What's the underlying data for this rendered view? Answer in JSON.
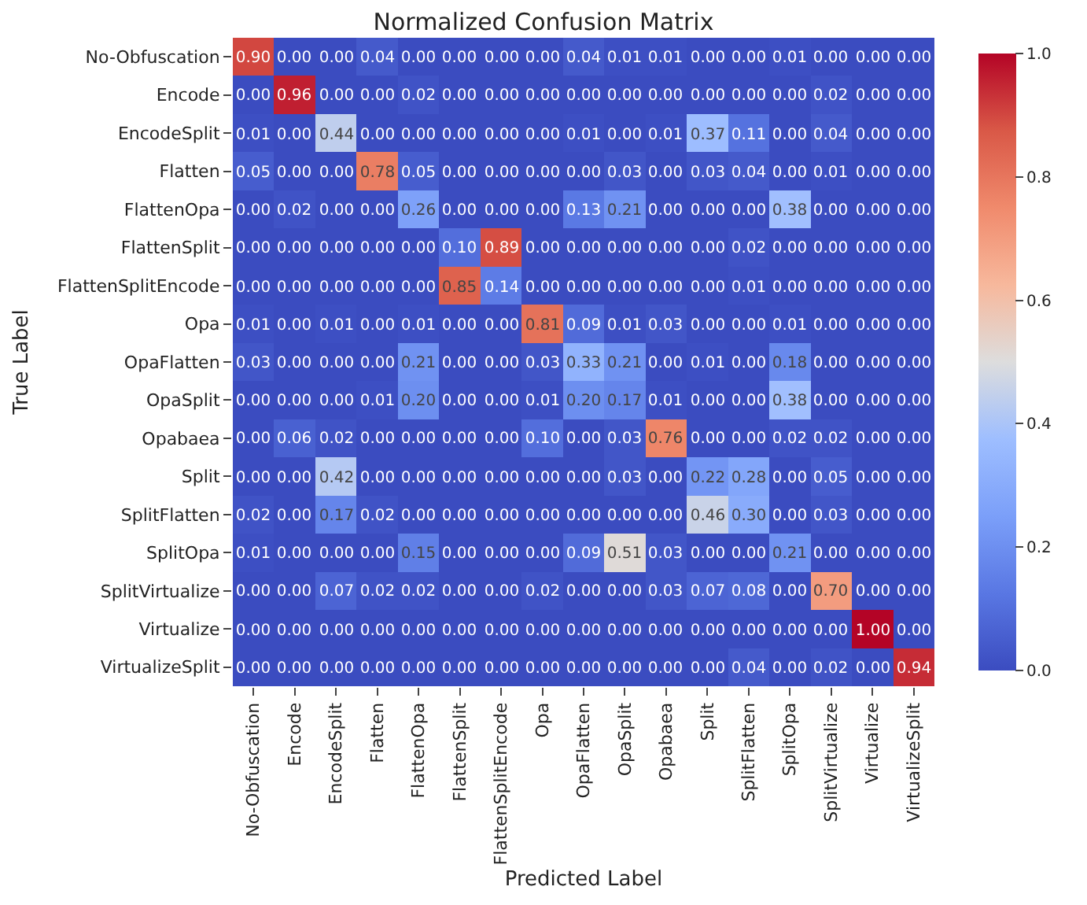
{
  "chart_data": {
    "type": "heatmap",
    "title": "Normalized Confusion Matrix",
    "xlabel": "Predicted Label",
    "ylabel": "True Label",
    "categories": [
      "No-Obfuscation",
      "Encode",
      "EncodeSplit",
      "Flatten",
      "FlattenOpa",
      "FlattenSplit",
      "FlattenSplitEncode",
      "Opa",
      "OpaFlatten",
      "OpaSplit",
      "Opabaea",
      "Split",
      "SplitFlatten",
      "SplitOpa",
      "SplitVirtualize",
      "Virtualize",
      "VirtualizeSplit"
    ],
    "y_categories": [
      "No-Obfuscation",
      "Encode",
      "EncodeSplit",
      "Flatten",
      "FlattenOpa",
      "FlattenSplit",
      "FlattenSplitEncode",
      "Opa",
      "OpaFlatten",
      "OpaSplit",
      "Opabaea",
      "Split",
      "SplitFlatten",
      "SplitOpa",
      "SplitVirtualize",
      "Virtualize",
      "VirtualizeSplit"
    ],
    "cells": [
      [
        0.9,
        0.0,
        0.0,
        0.04,
        0.0,
        0.0,
        0.0,
        0.0,
        0.04,
        0.01,
        0.01,
        0.0,
        0.0,
        0.01,
        0.0,
        0.0,
        0.0
      ],
      [
        0.0,
        0.96,
        0.0,
        0.0,
        0.02,
        0.0,
        0.0,
        0.0,
        0.0,
        0.0,
        0.0,
        0.0,
        0.0,
        0.0,
        0.02,
        0.0,
        0.0
      ],
      [
        0.01,
        0.0,
        0.44,
        0.0,
        0.0,
        0.0,
        0.0,
        0.0,
        0.01,
        0.0,
        0.01,
        0.37,
        0.11,
        0.0,
        0.04,
        0.0,
        0.0
      ],
      [
        0.05,
        0.0,
        0.0,
        0.78,
        0.05,
        0.0,
        0.0,
        0.0,
        0.0,
        0.03,
        0.0,
        0.03,
        0.04,
        0.0,
        0.01,
        0.0,
        0.0
      ],
      [
        0.0,
        0.02,
        0.0,
        0.0,
        0.26,
        0.0,
        0.0,
        0.0,
        0.13,
        0.21,
        0.0,
        0.0,
        0.0,
        0.38,
        0.0,
        0.0,
        0.0
      ],
      [
        0.0,
        0.0,
        0.0,
        0.0,
        0.0,
        0.1,
        0.89,
        0.0,
        0.0,
        0.0,
        0.0,
        0.0,
        0.02,
        0.0,
        0.0,
        0.0,
        0.0
      ],
      [
        0.0,
        0.0,
        0.0,
        0.0,
        0.0,
        0.85,
        0.14,
        0.0,
        0.0,
        0.0,
        0.0,
        0.0,
        0.01,
        0.0,
        0.0,
        0.0,
        0.0
      ],
      [
        0.01,
        0.0,
        0.01,
        0.0,
        0.01,
        0.0,
        0.0,
        0.81,
        0.09,
        0.01,
        0.03,
        0.0,
        0.0,
        0.01,
        0.0,
        0.0,
        0.0
      ],
      [
        0.03,
        0.0,
        0.0,
        0.0,
        0.21,
        0.0,
        0.0,
        0.03,
        0.33,
        0.21,
        0.0,
        0.01,
        0.0,
        0.18,
        0.0,
        0.0,
        0.0
      ],
      [
        0.0,
        0.0,
        0.0,
        0.01,
        0.2,
        0.0,
        0.0,
        0.01,
        0.2,
        0.17,
        0.01,
        0.0,
        0.0,
        0.38,
        0.0,
        0.0,
        0.0
      ],
      [
        0.0,
        0.06,
        0.02,
        0.0,
        0.0,
        0.0,
        0.0,
        0.1,
        0.0,
        0.03,
        0.76,
        0.0,
        0.0,
        0.02,
        0.02,
        0.0,
        0.0
      ],
      [
        0.0,
        0.0,
        0.42,
        0.0,
        0.0,
        0.0,
        0.0,
        0.0,
        0.0,
        0.03,
        0.0,
        0.22,
        0.28,
        0.0,
        0.05,
        0.0,
        0.0
      ],
      [
        0.02,
        0.0,
        0.17,
        0.02,
        0.0,
        0.0,
        0.0,
        0.0,
        0.0,
        0.0,
        0.0,
        0.46,
        0.3,
        0.0,
        0.03,
        0.0,
        0.0
      ],
      [
        0.01,
        0.0,
        0.0,
        0.0,
        0.15,
        0.0,
        0.0,
        0.0,
        0.09,
        0.51,
        0.03,
        0.0,
        0.0,
        0.21,
        0.0,
        0.0,
        0.0
      ],
      [
        0.0,
        0.0,
        0.07,
        0.02,
        0.02,
        0.0,
        0.0,
        0.02,
        0.0,
        0.0,
        0.03,
        0.07,
        0.08,
        0.0,
        0.7,
        0.0,
        0.0
      ],
      [
        0.0,
        0.0,
        0.0,
        0.0,
        0.0,
        0.0,
        0.0,
        0.0,
        0.0,
        0.0,
        0.0,
        0.0,
        0.0,
        0.0,
        0.0,
        1.0,
        0.0
      ],
      [
        0.0,
        0.0,
        0.0,
        0.0,
        0.0,
        0.0,
        0.0,
        0.0,
        0.0,
        0.0,
        0.0,
        0.0,
        0.04,
        0.0,
        0.02,
        0.0,
        0.94
      ]
    ],
    "cell_labels": [
      [
        "0.90",
        "0.00",
        "0.00",
        "0.04",
        "0.00",
        "0.00",
        "0.00",
        "0.00",
        "0.04",
        "0.01",
        "0.01",
        "0.00",
        "0.00",
        "0.01",
        "0.00",
        "0.00",
        "0.00"
      ],
      [
        "0.00",
        "0.96",
        "0.00",
        "0.00",
        "0.02",
        "0.00",
        "0.00",
        "0.00",
        "0.00",
        "0.00",
        "0.00",
        "0.00",
        "0.00",
        "0.00",
        "0.02",
        "0.00",
        "0.00"
      ],
      [
        "0.01",
        "0.00",
        "0.44",
        "0.00",
        "0.00",
        "0.00",
        "0.00",
        "0.00",
        "0.01",
        "0.00",
        "0.01",
        "0.37",
        "0.11",
        "0.00",
        "0.04",
        "0.00",
        "0.00"
      ],
      [
        "0.05",
        "0.00",
        "0.00",
        "0.78",
        "0.05",
        "0.00",
        "0.00",
        "0.00",
        "0.00",
        "0.03",
        "0.00",
        "0.03",
        "0.04",
        "0.00",
        "0.01",
        "0.00",
        "0.00"
      ],
      [
        "0.00",
        "0.02",
        "0.00",
        "0.00",
        "0.26",
        "0.00",
        "0.00",
        "0.00",
        "0.13",
        "0.21",
        "0.00",
        "0.00",
        "0.00",
        "0.38",
        "0.00",
        "0.00",
        "0.00"
      ],
      [
        "0.00",
        "0.00",
        "0.00",
        "0.00",
        "0.00",
        "0.10",
        "0.89",
        "0.00",
        "0.00",
        "0.00",
        "0.00",
        "0.00",
        "0.02",
        "0.00",
        "0.00",
        "0.00",
        "0.00"
      ],
      [
        "0.00",
        "0.00",
        "0.00",
        "0.00",
        "0.00",
        "0.85",
        "0.14",
        "0.00",
        "0.00",
        "0.00",
        "0.00",
        "0.00",
        "0.01",
        "0.00",
        "0.00",
        "0.00",
        "0.00"
      ],
      [
        "0.01",
        "0.00",
        "0.01",
        "0.00",
        "0.01",
        "0.00",
        "0.00",
        "0.81",
        "0.09",
        "0.01",
        "0.03",
        "0.00",
        "0.00",
        "0.01",
        "0.00",
        "0.00",
        "0.00"
      ],
      [
        "0.03",
        "0.00",
        "0.00",
        "0.00",
        "0.21",
        "0.00",
        "0.00",
        "0.03",
        "0.33",
        "0.21",
        "0.00",
        "0.01",
        "0.00",
        "0.18",
        "0.00",
        "0.00",
        "0.00"
      ],
      [
        "0.00",
        "0.00",
        "0.00",
        "0.01",
        "0.20",
        "0.00",
        "0.00",
        "0.01",
        "0.20",
        "0.17",
        "0.01",
        "0.00",
        "0.00",
        "0.38",
        "0.00",
        "0.00",
        "0.00"
      ],
      [
        "0.00",
        "0.06",
        "0.02",
        "0.00",
        "0.00",
        "0.00",
        "0.00",
        "0.10",
        "0.00",
        "0.03",
        "0.76",
        "0.00",
        "0.00",
        "0.02",
        "0.02",
        "0.00",
        "0.00"
      ],
      [
        "0.00",
        "0.00",
        "0.42",
        "0.00",
        "0.00",
        "0.00",
        "0.00",
        "0.00",
        "0.00",
        "0.03",
        "0.00",
        "0.22",
        "0.28",
        "0.00",
        "0.05",
        "0.00",
        "0.00"
      ],
      [
        "0.02",
        "0.00",
        "0.17",
        "0.02",
        "0.00",
        "0.00",
        "0.00",
        "0.00",
        "0.00",
        "0.00",
        "0.00",
        "0.46",
        "0.30",
        "0.00",
        "0.03",
        "0.00",
        "0.00"
      ],
      [
        "0.01",
        "0.00",
        "0.00",
        "0.00",
        "0.15",
        "0.00",
        "0.00",
        "0.00",
        "0.09",
        "0.51",
        "0.03",
        "0.00",
        "0.00",
        "0.21",
        "0.00",
        "0.00",
        "0.00"
      ],
      [
        "0.00",
        "0.00",
        "0.07",
        "0.02",
        "0.02",
        "0.00",
        "0.00",
        "0.02",
        "0.00",
        "0.00",
        "0.03",
        "0.07",
        "0.08",
        "0.00",
        "0.70",
        "0.00",
        "0.00"
      ],
      [
        "0.00",
        "0.00",
        "0.00",
        "0.00",
        "0.00",
        "0.00",
        "0.00",
        "0.00",
        "0.00",
        "0.00",
        "0.00",
        "0.00",
        "0.00",
        "0.00",
        "0.00",
        "1.00",
        "0.00"
      ],
      [
        "0.00",
        "0.00",
        "0.00",
        "0.00",
        "0.00",
        "0.00",
        "0.00",
        "0.00",
        "0.00",
        "0.00",
        "0.00",
        "0.00",
        "0.04",
        "0.00",
        "0.02",
        "0.00",
        "0.94"
      ]
    ],
    "clim": [
      0,
      1
    ],
    "cticks": [
      {
        "value": 0,
        "label": "0.0"
      },
      {
        "value": 0.2,
        "label": "0.2"
      },
      {
        "value": 0.4,
        "label": "0.4"
      },
      {
        "value": 0.6,
        "label": "0.6"
      },
      {
        "value": 0.8,
        "label": "0.8"
      },
      {
        "value": 1,
        "label": "1.0"
      }
    ]
  }
}
